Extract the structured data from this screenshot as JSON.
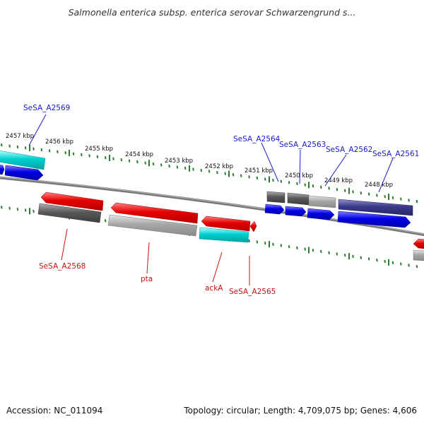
{
  "title": "Salmonella enterica subsp. enterica serovar Schwarzengrund s...",
  "footer": {
    "accession": "Accession: NC_011094",
    "summary": "Topology: circular; Length: 4,709,075 bp; Genes: 4,606"
  },
  "colors": {
    "background": "#ffffff",
    "backbone": "#808080",
    "tick": "#2e7d32",
    "forward_label": "#1a1acc",
    "reverse_label": "#cc1111",
    "red_gene": "#e60000",
    "blue_gene": "#0000e6",
    "gray_gene": "#a6a6a6",
    "darkgray_gene": "#595959",
    "cyan_gene": "#00d0d0",
    "navy_gene": "#3a3a8a"
  },
  "scale": {
    "unit": "kbp",
    "labels": [
      "2457 kbp",
      "2456 kbp",
      "2455 kbp",
      "2454 kbp",
      "2453 kbp",
      "2452 kbp",
      "2451 kbp",
      "2450 kbp",
      "2449 kbp",
      "2448 kbp"
    ]
  },
  "gene_labels": {
    "top": [
      "SeSA_A2569",
      "SeSA_A2564",
      "SeSA_A2563",
      "SeSA_A2562",
      "SeSA_A2561"
    ],
    "bottom": [
      "SeSA_A2568",
      "pta",
      "ackA",
      "SeSA_A2565"
    ]
  }
}
